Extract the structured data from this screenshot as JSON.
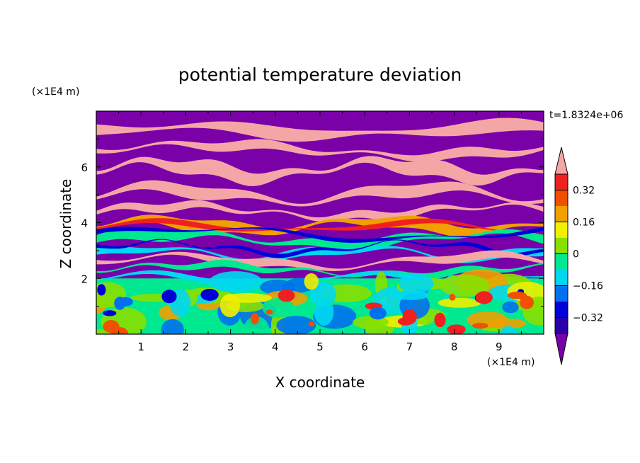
{
  "chart_data": {
    "type": "heatmap",
    "title": "potential temperature deviation",
    "xlabel": "X coordinate",
    "ylabel": "Z coordinate",
    "x_unit": "(×1E4 m)",
    "y_unit": "(×1E4 m)",
    "time_label": "t=1.8324e+06",
    "xlim": [
      0,
      10
    ],
    "ylim": [
      0,
      8
    ],
    "x_ticks": [
      1,
      2,
      3,
      4,
      5,
      6,
      7,
      8,
      9
    ],
    "y_ticks": [
      2,
      4,
      6
    ],
    "colorbar": {
      "levels": [
        -0.4,
        -0.32,
        -0.24,
        -0.16,
        -0.08,
        0,
        0.08,
        0.16,
        0.24,
        0.32,
        0.4
      ],
      "tick_labels": [
        "0.32",
        "0.16",
        "0",
        "−0.16",
        "−0.32"
      ],
      "tick_values": [
        0.32,
        0.16,
        0,
        -0.16,
        -0.32
      ],
      "colors": [
        "#7a00a8",
        "#2a00a8",
        "#0000d8",
        "#0070f0",
        "#00d8f0",
        "#00e890",
        "#88e000",
        "#f0f000",
        "#f0a000",
        "#f05000",
        "#f02020",
        "#f4a6a6"
      ],
      "extend": "both"
    },
    "field_description": "banded layers; purple/pink above ~4, turbulent green/cyan below ~2"
  }
}
